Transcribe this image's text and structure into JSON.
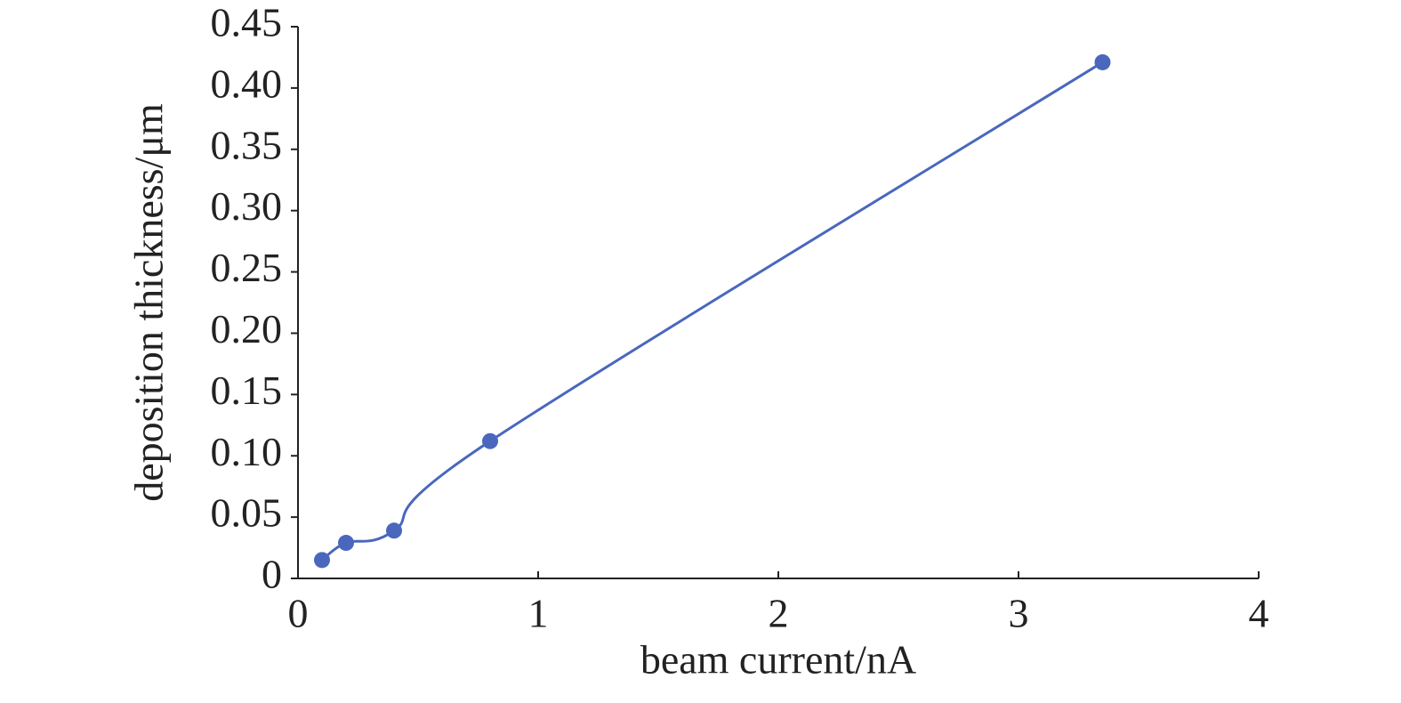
{
  "chart_data": {
    "type": "line",
    "xlabel": "beam current/nA",
    "ylabel": "deposition thickness/μm",
    "x": [
      0.1,
      0.2,
      0.4,
      0.8,
      3.35
    ],
    "series": [
      {
        "color": "#4a67bd",
        "values": [
          0.015,
          0.029,
          0.039,
          0.112,
          0.421
        ]
      }
    ],
    "xlim": [
      0,
      4
    ],
    "xticks": [
      0,
      1,
      2,
      3,
      4
    ],
    "ylim": [
      0,
      0.45
    ],
    "yticks": [
      0,
      0.05,
      {
        "value": 0.1,
        "label": "0.10"
      },
      0.15,
      {
        "value": 0.2,
        "label": "0.20"
      },
      0.25,
      {
        "value": 0.3,
        "label": "0.30"
      },
      0.35,
      {
        "value": 0.4,
        "label": "0.40"
      },
      0.45
    ],
    "grid": false,
    "smooth": true
  }
}
